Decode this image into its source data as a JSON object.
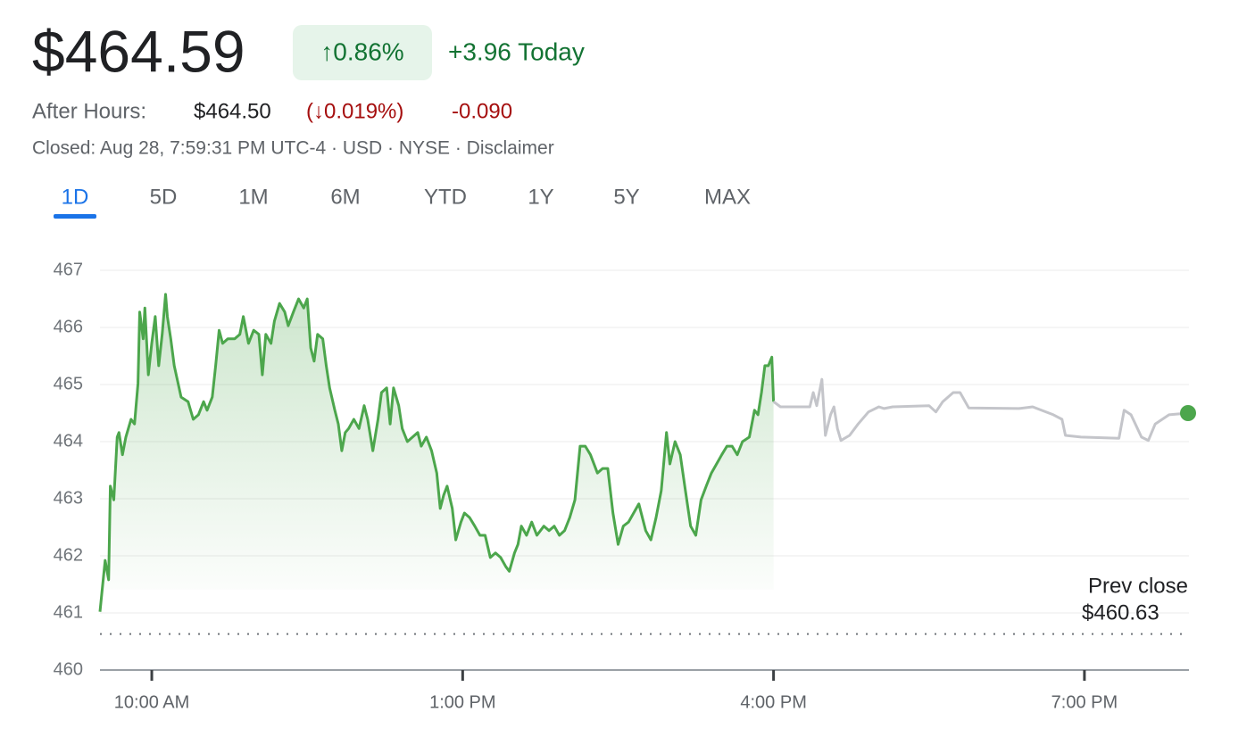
{
  "header": {
    "price": "$464.59",
    "change_pct": "↑0.86%",
    "change_today": "+3.96 Today",
    "after_hours_label": "After Hours:",
    "after_hours_price": "$464.50",
    "after_hours_pct": "(↓0.019%)",
    "after_hours_change": "-0.090",
    "meta": "Closed: Aug 28, 7:59:31 PM UTC-4 · USD · NYSE · Disclaimer"
  },
  "tabs": [
    "1D",
    "5D",
    "1M",
    "6M",
    "YTD",
    "1Y",
    "5Y",
    "MAX"
  ],
  "active_tab": 0,
  "chart_data": {
    "type": "line",
    "series": [
      {
        "color": "#4ca64c",
        "area": true,
        "x": [
          570,
          573,
          575,
          576,
          578,
          580,
          581,
          583,
          585,
          588,
          590,
          592,
          593,
          595,
          596,
          598,
          600,
          602,
          604,
          606,
          608,
          609,
          611,
          613,
          617,
          621,
          624,
          627,
          630,
          632,
          635,
          637,
          639,
          641,
          644,
          648,
          651,
          653,
          656,
          659,
          662,
          664,
          666,
          669,
          671,
          674,
          677,
          679,
          682,
          685,
          688,
          690,
          692,
          694,
          696,
          699,
          701,
          703,
          706,
          708,
          710,
          712,
          714,
          717,
          720,
          723,
          725,
          728,
          731,
          733,
          736,
          738,
          740,
          743,
          745,
          748,
          751,
          754,
          756,
          759,
          762,
          765,
          767,
          769,
          771,
          774,
          776,
          779,
          781,
          784,
          787,
          790,
          793,
          796,
          799,
          802,
          805,
          807,
          810,
          812,
          814,
          817,
          820,
          823,
          827,
          830,
          833,
          836,
          839,
          842,
          845,
          848,
          851,
          854,
          858,
          861,
          864,
          867,
          870,
          873,
          876,
          879,
          882,
          886,
          889,
          892,
          895,
          898,
          900,
          903,
          906,
          909,
          912,
          915,
          918,
          921,
          924,
          927,
          930,
          933,
          936,
          939,
          942,
          946,
          949,
          951,
          953,
          955,
          957,
          959,
          960
        ],
        "values": [
          461.02,
          461.92,
          461.58,
          463.22,
          462.98,
          464.08,
          464.16,
          463.77,
          464.08,
          464.39,
          464.31,
          465.02,
          466.27,
          465.8,
          466.34,
          465.17,
          465.72,
          466.19,
          465.33,
          465.88,
          466.58,
          466.19,
          465.8,
          465.33,
          464.78,
          464.7,
          464.39,
          464.47,
          464.7,
          464.55,
          464.78,
          465.33,
          465.95,
          465.72,
          465.8,
          465.8,
          465.88,
          466.19,
          465.72,
          465.95,
          465.88,
          465.17,
          465.88,
          465.72,
          466.11,
          466.42,
          466.27,
          466.03,
          466.27,
          466.5,
          466.34,
          466.5,
          465.64,
          465.41,
          465.88,
          465.8,
          465.33,
          464.94,
          464.55,
          464.31,
          463.84,
          464.16,
          464.23,
          464.39,
          464.23,
          464.63,
          464.39,
          463.84,
          464.39,
          464.86,
          464.94,
          464.31,
          464.94,
          464.63,
          464.23,
          464.0,
          464.08,
          464.16,
          463.92,
          464.08,
          463.84,
          463.45,
          462.83,
          463.06,
          463.22,
          462.83,
          462.28,
          462.59,
          462.75,
          462.67,
          462.52,
          462.36,
          462.36,
          461.97,
          462.05,
          461.97,
          461.81,
          461.73,
          462.05,
          462.2,
          462.52,
          462.36,
          462.59,
          462.36,
          462.52,
          462.44,
          462.52,
          462.36,
          462.44,
          462.67,
          462.98,
          463.92,
          463.92,
          463.77,
          463.45,
          463.53,
          463.53,
          462.75,
          462.2,
          462.52,
          462.59,
          462.75,
          462.91,
          462.44,
          462.28,
          462.67,
          463.14,
          464.16,
          463.61,
          464.0,
          463.77,
          463.14,
          462.52,
          462.36,
          462.98,
          463.22,
          463.45,
          463.61,
          463.77,
          463.92,
          463.92,
          463.77,
          464.0,
          464.08,
          464.55,
          464.47,
          464.86,
          465.33,
          465.33,
          465.48,
          464.7
        ]
      },
      {
        "color": "#c4c5ca",
        "area": false,
        "end_marker": "#4ca64c",
        "x": [
          960,
          964,
          981,
          983,
          985,
          988,
          990,
          993,
          995,
          997,
          999,
          1004,
          1009,
          1015,
          1021,
          1024,
          1029,
          1050,
          1054,
          1058,
          1064,
          1068,
          1073,
          1102,
          1110,
          1122,
          1127,
          1129,
          1138,
          1160,
          1163,
          1167,
          1173,
          1177,
          1181,
          1189,
          1200
        ],
        "values": [
          464.7,
          464.61,
          464.61,
          464.86,
          464.63,
          465.09,
          464.11,
          464.47,
          464.61,
          464.23,
          464.02,
          464.11,
          464.31,
          464.52,
          464.61,
          464.58,
          464.61,
          464.63,
          464.52,
          464.7,
          464.86,
          464.86,
          464.59,
          464.58,
          464.61,
          464.47,
          464.39,
          464.11,
          464.08,
          464.06,
          464.55,
          464.47,
          464.08,
          464.02,
          464.31,
          464.47,
          464.5
        ]
      }
    ],
    "prev_close": {
      "label": "Prev close",
      "value": 460.63,
      "value_label": "$460.63"
    },
    "xlim": [
      570,
      1200
    ],
    "xticks": [
      {
        "value": 600,
        "label": "10:00 AM"
      },
      {
        "value": 780,
        "label": "1:00 PM"
      },
      {
        "value": 960,
        "label": "4:00 PM"
      },
      {
        "value": 1140,
        "label": "7:00 PM"
      }
    ],
    "ylim": [
      460,
      467
    ],
    "yticks": [
      460,
      461,
      462,
      463,
      464,
      465,
      466,
      467
    ],
    "grid": true
  }
}
